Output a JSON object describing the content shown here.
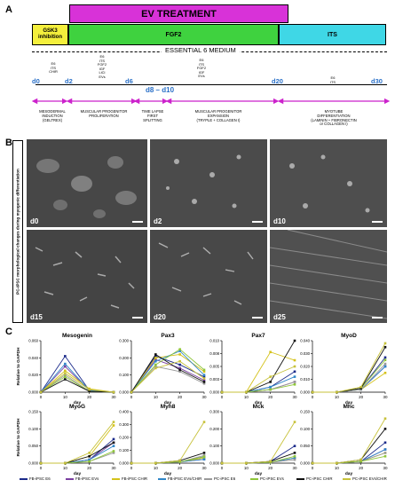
{
  "panels": {
    "a": "A",
    "b": "B",
    "c": "C"
  },
  "timeline": {
    "ev_treatment": "EV TREATMENT",
    "gsk3_line1": "GSK3",
    "gsk3_line2": "inhibition",
    "fgf2": "FGF2",
    "its": "ITS",
    "medium": "ESSENTIAL 6 MEDIUM",
    "days": {
      "d0": "d0",
      "d2": "d2",
      "d6": "d6",
      "d8_d10": "d8 – d10",
      "d20": "d20",
      "d30": "d30"
    },
    "media_d0": [
      "E6",
      "ITS",
      "CHIR"
    ],
    "media_d2": [
      "E6",
      "ITS",
      "FGF2",
      "IGF",
      "LiCl",
      "EVs"
    ],
    "media_d10": [
      "E6",
      "ITS",
      "FGF2",
      "IGF",
      "EVs"
    ],
    "media_d20": [
      "E6",
      "ITS"
    ],
    "phases": [
      [
        "MESODERMAL",
        "INDUCTION",
        "(GELTREX)"
      ],
      [
        "MUSCULAR PROGENITOR",
        "PROLIFERATION"
      ],
      [
        "TIME LAPSE",
        "FIRST",
        "SPLITTING"
      ],
      [
        "MUSCULAR PROGENITOR",
        "EXPANSION",
        "(TRYPLE + COLLAGEN I)"
      ],
      [
        "MYOTUBE",
        "DIFFERENTIATION",
        "(LAMININ + FIBRONECTIN",
        "or COLLAGEN I)"
      ]
    ]
  },
  "microscopy": {
    "side_label": "PC-iPSC morphological changes during myogenic differentiation",
    "images": [
      "d0",
      "d2",
      "d10",
      "d15",
      "d20",
      "d25"
    ]
  },
  "colors": {
    "ev": "#d832d8",
    "gsk3": "#f4ef3c",
    "fgf2": "#3fd23f",
    "its": "#3fd7e6",
    "arrow": "#cc22cc",
    "day": "#2a70c8",
    "FB-iPSC E6": "#1b2a8a",
    "FB-iPSC EVs": "#7a3fa0",
    "FB-iPSC CHIR": "#d4c21a",
    "FB-iPSC EVs/CHIR": "#2f86c8",
    "PC-iPSC E6": "#9a9a9a",
    "PC-iPSC EVs": "#8fc63a",
    "PC-iPSC CHIR": "#111111",
    "PC-iPSC EVs/CHIR": "#c7c23a"
  },
  "chart_data": [
    {
      "type": "line",
      "title": "Mesogenin",
      "ylabel": "Relative to GAPDH",
      "xlabel": "day",
      "x": [
        0,
        10,
        20,
        30
      ],
      "ylim": [
        0,
        0.06
      ],
      "yticks": [
        "0.000",
        "0.020",
        "0.040",
        "0.060"
      ],
      "series": [
        {
          "name": "FB-iPSC E6",
          "values": [
            0,
            0.042,
            0.002,
            0
          ]
        },
        {
          "name": "FB-iPSC EVs",
          "values": [
            0,
            0.03,
            0.002,
            0
          ]
        },
        {
          "name": "FB-iPSC CHIR",
          "values": [
            0,
            0.025,
            0.004,
            0
          ]
        },
        {
          "name": "FB-iPSC EVs/CHIR",
          "values": [
            0,
            0.033,
            0.002,
            0
          ]
        },
        {
          "name": "PC-iPSC E6",
          "values": [
            0,
            0.02,
            0.001,
            0
          ]
        },
        {
          "name": "PC-iPSC EVs",
          "values": [
            0,
            0.018,
            0.001,
            0
          ]
        },
        {
          "name": "PC-iPSC CHIR",
          "values": [
            0,
            0.015,
            0.001,
            0
          ]
        },
        {
          "name": "PC-iPSC EVs/CHIR",
          "values": [
            0,
            0.022,
            0.003,
            0
          ]
        }
      ]
    },
    {
      "type": "line",
      "title": "Pax3",
      "ylabel": "",
      "xlabel": "day",
      "x": [
        0,
        10,
        20,
        30
      ],
      "ylim": [
        0,
        0.3
      ],
      "yticks": [
        "0.000",
        "0.100",
        "0.200",
        "0.300"
      ],
      "series": [
        {
          "name": "FB-iPSC E6",
          "values": [
            0,
            0.21,
            0.16,
            0.09
          ]
        },
        {
          "name": "FB-iPSC EVs",
          "values": [
            0,
            0.19,
            0.14,
            0.07
          ]
        },
        {
          "name": "FB-iPSC CHIR",
          "values": [
            0,
            0.2,
            0.22,
            0.12
          ]
        },
        {
          "name": "FB-iPSC EVs/CHIR",
          "values": [
            0,
            0.18,
            0.24,
            0.1
          ]
        },
        {
          "name": "PC-iPSC E6",
          "values": [
            0,
            0.15,
            0.12,
            0.05
          ]
        },
        {
          "name": "PC-iPSC EVs",
          "values": [
            0,
            0.16,
            0.25,
            0.13
          ]
        },
        {
          "name": "PC-iPSC CHIR",
          "values": [
            0,
            0.22,
            0.13,
            0.06
          ]
        },
        {
          "name": "PC-iPSC EVs/CHIR",
          "values": [
            0,
            0.14,
            0.18,
            0.08
          ]
        }
      ]
    },
    {
      "type": "line",
      "title": "Pax7",
      "ylabel": "",
      "xlabel": "day",
      "x": [
        0,
        10,
        20,
        30
      ],
      "ylim": [
        0,
        0.01
      ],
      "yticks": [
        "0.000",
        "0.003",
        "0.005",
        "0.008",
        "0.010"
      ],
      "series": [
        {
          "name": "FB-iPSC E6",
          "values": [
            0,
            0,
            0.001,
            0.004
          ]
        },
        {
          "name": "FB-iPSC EVs",
          "values": [
            0,
            0,
            0.0005,
            0.002
          ]
        },
        {
          "name": "FB-iPSC CHIR",
          "values": [
            0,
            0,
            0.0078,
            0.0062
          ]
        },
        {
          "name": "FB-iPSC EVs/CHIR",
          "values": [
            0,
            0,
            0.001,
            0.003
          ]
        },
        {
          "name": "PC-iPSC E6",
          "values": [
            0,
            0,
            0.0005,
            0.002
          ]
        },
        {
          "name": "PC-iPSC EVs",
          "values": [
            0,
            0,
            0.0005,
            0.0015
          ]
        },
        {
          "name": "PC-iPSC CHIR",
          "values": [
            0,
            0,
            0.002,
            0.01
          ]
        },
        {
          "name": "PC-iPSC EVs/CHIR",
          "values": [
            0,
            0,
            0.003,
            0.005
          ]
        }
      ]
    },
    {
      "type": "line",
      "title": "MyoD",
      "ylabel": "",
      "xlabel": "day",
      "x": [
        0,
        10,
        20,
        30
      ],
      "ylim": [
        0,
        0.04
      ],
      "yticks": [
        "0.000",
        "0.010",
        "0.020",
        "0.030",
        "0.040"
      ],
      "series": [
        {
          "name": "FB-iPSC E6",
          "values": [
            0,
            0,
            0.003,
            0.027
          ]
        },
        {
          "name": "FB-iPSC EVs",
          "values": [
            0,
            0,
            0.002,
            0.02
          ]
        },
        {
          "name": "FB-iPSC CHIR",
          "values": [
            0,
            0,
            0.002,
            0.015
          ]
        },
        {
          "name": "FB-iPSC EVs/CHIR",
          "values": [
            0,
            0,
            0.002,
            0.02
          ]
        },
        {
          "name": "PC-iPSC E6",
          "values": [
            0,
            0,
            0.002,
            0.022
          ]
        },
        {
          "name": "PC-iPSC EVs",
          "values": [
            0,
            0,
            0.003,
            0.025
          ]
        },
        {
          "name": "PC-iPSC CHIR",
          "values": [
            0,
            0,
            0.003,
            0.035
          ]
        },
        {
          "name": "PC-iPSC EVs/CHIR",
          "values": [
            0,
            0,
            0.004,
            0.038
          ]
        }
      ]
    },
    {
      "type": "line",
      "title": "MyoG",
      "ylabel": "Relative to GAPDH",
      "xlabel": "day",
      "x": [
        0,
        10,
        20,
        30
      ],
      "ylim": [
        0,
        0.15
      ],
      "yticks": [
        "0.000",
        "0.050",
        "0.100",
        "0.150"
      ],
      "series": [
        {
          "name": "FB-iPSC E6",
          "values": [
            0,
            0,
            0.01,
            0.07
          ]
        },
        {
          "name": "FB-iPSC EVs",
          "values": [
            0,
            0,
            0.01,
            0.06
          ]
        },
        {
          "name": "FB-iPSC CHIR",
          "values": [
            0,
            0,
            0.02,
            0.11
          ]
        },
        {
          "name": "FB-iPSC EVs/CHIR",
          "values": [
            0,
            0,
            0.01,
            0.05
          ]
        },
        {
          "name": "PC-iPSC E6",
          "values": [
            0,
            0,
            0.005,
            0.03
          ]
        },
        {
          "name": "PC-iPSC EVs",
          "values": [
            0,
            0,
            0.005,
            0.035
          ]
        },
        {
          "name": "PC-iPSC CHIR",
          "values": [
            0,
            0,
            0.02,
            0.06
          ]
        },
        {
          "name": "PC-iPSC EVs/CHIR",
          "values": [
            0,
            0,
            0.03,
            0.12
          ]
        }
      ]
    },
    {
      "type": "line",
      "title": "Myh8",
      "ylabel": "",
      "xlabel": "day",
      "x": [
        0,
        10,
        20,
        30
      ],
      "ylim": [
        0,
        0.4
      ],
      "yticks": [
        "0.000",
        "0.100",
        "0.200",
        "0.300",
        "0.400"
      ],
      "series": [
        {
          "name": "FB-iPSC E6",
          "values": [
            0,
            0,
            0.01,
            0.05
          ]
        },
        {
          "name": "FB-iPSC EVs",
          "values": [
            0,
            0,
            0.01,
            0.03
          ]
        },
        {
          "name": "FB-iPSC CHIR",
          "values": [
            0,
            0,
            0.01,
            0.04
          ]
        },
        {
          "name": "FB-iPSC EVs/CHIR",
          "values": [
            0,
            0,
            0.01,
            0.03
          ]
        },
        {
          "name": "PC-iPSC E6",
          "values": [
            0,
            0,
            0.01,
            0.06
          ]
        },
        {
          "name": "PC-iPSC EVs",
          "values": [
            0,
            0,
            0.01,
            0.05
          ]
        },
        {
          "name": "PC-iPSC CHIR",
          "values": [
            0,
            0,
            0.02,
            0.08
          ]
        },
        {
          "name": "PC-iPSC EVs/CHIR",
          "values": [
            0,
            0,
            0.02,
            0.32
          ]
        }
      ]
    },
    {
      "type": "line",
      "title": "Mck",
      "ylabel": "",
      "xlabel": "day",
      "x": [
        0,
        10,
        20,
        30
      ],
      "ylim": [
        0,
        0.3
      ],
      "yticks": [
        "0.000",
        "0.100",
        "0.200",
        "0.300"
      ],
      "series": [
        {
          "name": "FB-iPSC E6",
          "values": [
            0,
            0,
            0.01,
            0.1
          ]
        },
        {
          "name": "FB-iPSC EVs",
          "values": [
            0,
            0,
            0.005,
            0.03
          ]
        },
        {
          "name": "FB-iPSC CHIR",
          "values": [
            0,
            0,
            0.005,
            0.03
          ]
        },
        {
          "name": "FB-iPSC EVs/CHIR",
          "values": [
            0,
            0,
            0.005,
            0.03
          ]
        },
        {
          "name": "PC-iPSC E6",
          "values": [
            0,
            0,
            0.005,
            0.02
          ]
        },
        {
          "name": "PC-iPSC EVs",
          "values": [
            0,
            0,
            0.005,
            0.04
          ]
        },
        {
          "name": "PC-iPSC CHIR",
          "values": [
            0,
            0,
            0.01,
            0.06
          ]
        },
        {
          "name": "PC-iPSC EVs/CHIR",
          "values": [
            0,
            0,
            0.01,
            0.24
          ]
        }
      ]
    },
    {
      "type": "line",
      "title": "Mhc",
      "ylabel": "",
      "xlabel": "day",
      "x": [
        0,
        10,
        20,
        30
      ],
      "ylim": [
        0,
        0.15
      ],
      "yticks": [
        "0.000",
        "0.050",
        "0.100",
        "0.150"
      ],
      "series": [
        {
          "name": "FB-iPSC E6",
          "values": [
            0,
            0,
            0.005,
            0.06
          ]
        },
        {
          "name": "FB-iPSC EVs",
          "values": [
            0,
            0,
            0.005,
            0.04
          ]
        },
        {
          "name": "FB-iPSC CHIR",
          "values": [
            0,
            0,
            0.005,
            0.03
          ]
        },
        {
          "name": "FB-iPSC EVs/CHIR",
          "values": [
            0,
            0,
            0.005,
            0.04
          ]
        },
        {
          "name": "PC-iPSC E6",
          "values": [
            0,
            0,
            0.005,
            0.03
          ]
        },
        {
          "name": "PC-iPSC EVs",
          "values": [
            0,
            0,
            0.005,
            0.02
          ]
        },
        {
          "name": "PC-iPSC CHIR",
          "values": [
            0,
            0,
            0.01,
            0.1
          ]
        },
        {
          "name": "PC-iPSC EVs/CHIR",
          "values": [
            0,
            0,
            0.01,
            0.13
          ]
        }
      ]
    }
  ],
  "legend": [
    "FB-iPSC E6",
    "FB-iPSC EVs",
    "FB-iPSC CHIR",
    "FB-iPSC EVs/CHIR",
    "PC-iPSC E6",
    "PC-iPSC EVs",
    "PC-iPSC CHIR",
    "PC-iPSC EVs/CHIR"
  ]
}
